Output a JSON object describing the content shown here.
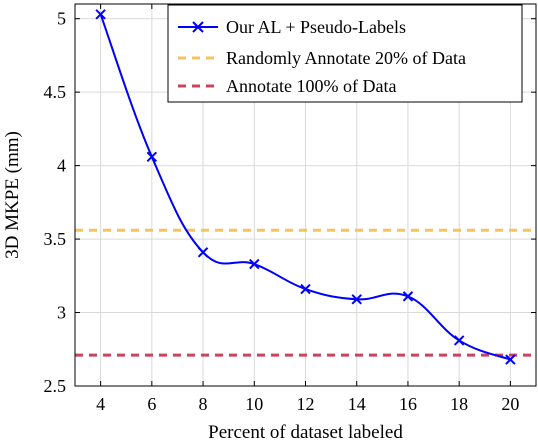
{
  "chart_data": {
    "type": "line",
    "xlabel": "Percent of dataset labeled",
    "ylabel": "3D MKPE (mm)",
    "xlim": [
      3,
      21
    ],
    "ylim": [
      2.5,
      5.1
    ],
    "x_ticks": [
      4,
      6,
      8,
      10,
      12,
      14,
      16,
      18,
      20
    ],
    "x_tick_labels": [
      "4",
      "6",
      "8",
      "10",
      "12",
      "14",
      "16",
      "18",
      "20"
    ],
    "y_ticks": [
      2.5,
      3,
      3.5,
      4,
      4.5,
      5
    ],
    "y_tick_labels": [
      "2.5",
      "3",
      "3.5",
      "4",
      "4.5",
      "5"
    ],
    "grid": true,
    "legend_position": "top-right",
    "series": [
      {
        "name": "Our AL + Pseudo-Labels",
        "style": "line-with-x-markers",
        "color": "#0000ff",
        "x": [
          4,
          6,
          8,
          10,
          12,
          14,
          16,
          18,
          20
        ],
        "values": [
          5.03,
          4.06,
          3.41,
          3.33,
          3.16,
          3.09,
          3.11,
          2.81,
          2.68
        ]
      }
    ],
    "reference_lines": [
      {
        "name": "Randomly Annotate 20% of Data",
        "style": "dashed",
        "color": "#f7c35f",
        "y": 3.56
      },
      {
        "name": "Annotate 100% of Data",
        "style": "dashed",
        "color": "#c8455d",
        "y": 2.71
      }
    ]
  }
}
